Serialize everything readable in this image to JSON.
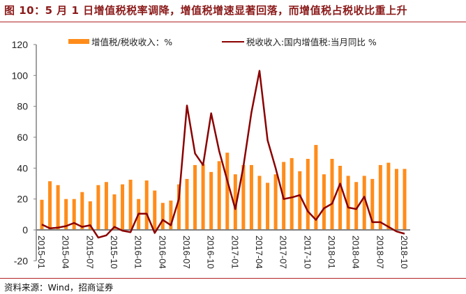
{
  "title": "图 10：5 月 1 日增值税税率调降，增值税增速显著回落，而增值税占税收比重上升",
  "source": "资料来源：Wind，招商证券",
  "colors": {
    "bar": "#ff8c1a",
    "line": "#8b0000",
    "title": "#8b1a1a",
    "rule": "#b22222",
    "axis": "#808080"
  },
  "legend": {
    "bar_label": "增值税/税收收入：%",
    "line_label": "税收收入:国内增值税:当月同比 %"
  },
  "chart_data": {
    "type": "bar+line",
    "title": "图 10：5 月 1 日增值税税率调降，增值税增速显著回落，而增值税占税收比重上升",
    "xlabel": "",
    "ylabel": "",
    "ylim": [
      -20,
      120
    ],
    "yticks": [
      -20,
      0,
      20,
      40,
      60,
      80,
      100,
      120
    ],
    "grid": false,
    "legend_position": "top",
    "x_tick_labels": [
      "2015-01",
      "2015-04",
      "2015-07",
      "2015-10",
      "2016-01",
      "2016-04",
      "2016-07",
      "2016-10",
      "2017-01",
      "2017-04",
      "2017-07",
      "2017-10",
      "2018-01",
      "2018-04",
      "2018-07",
      "2018-10"
    ],
    "categories": [
      "2015-01",
      "2015-02",
      "2015-03",
      "2015-04",
      "2015-05",
      "2015-06",
      "2015-07",
      "2015-08",
      "2015-09",
      "2015-10",
      "2015-11",
      "2015-12",
      "2016-01",
      "2016-02",
      "2016-03",
      "2016-04",
      "2016-05",
      "2016-06",
      "2016-07",
      "2016-08",
      "2016-09",
      "2016-10",
      "2016-11",
      "2016-12",
      "2017-01",
      "2017-02",
      "2017-03",
      "2017-04",
      "2017-05",
      "2017-06",
      "2017-07",
      "2017-08",
      "2017-09",
      "2017-10",
      "2017-11",
      "2017-12",
      "2018-01",
      "2018-02",
      "2018-03",
      "2018-04",
      "2018-05",
      "2018-06",
      "2018-07",
      "2018-08",
      "2018-09",
      "2018-10"
    ],
    "series": [
      {
        "name": "增值税/税收收入：%",
        "type": "bar",
        "values": [
          19.5,
          31.5,
          29,
          20,
          20,
          24.5,
          18.5,
          29,
          31,
          23,
          29.5,
          32.5,
          20,
          32,
          25.5,
          17.5,
          19,
          29.5,
          33,
          42,
          42.5,
          37.5,
          44.5,
          50,
          36,
          42,
          42,
          35,
          30.5,
          36,
          44,
          46.5,
          38,
          46,
          55,
          36,
          46,
          41.5,
          35,
          31,
          35,
          33,
          42,
          43.5,
          39.5,
          39.5
        ]
      },
      {
        "name": "税收收入:国内增值税:当月同比 %",
        "type": "line",
        "values": [
          3.5,
          1,
          1.5,
          2.5,
          4.5,
          2,
          3,
          -5,
          -3.5,
          2,
          -0.5,
          -1.5,
          10.5,
          10.5,
          -2,
          6.5,
          3,
          20,
          80.5,
          49.5,
          42,
          75.5,
          51,
          32,
          13.5,
          41,
          76,
          103,
          58,
          40,
          20,
          21,
          22.5,
          12,
          6.5,
          14,
          17,
          30,
          14.5,
          13.5,
          21.5,
          5,
          5,
          2,
          -1,
          -2.5
        ]
      }
    ]
  }
}
